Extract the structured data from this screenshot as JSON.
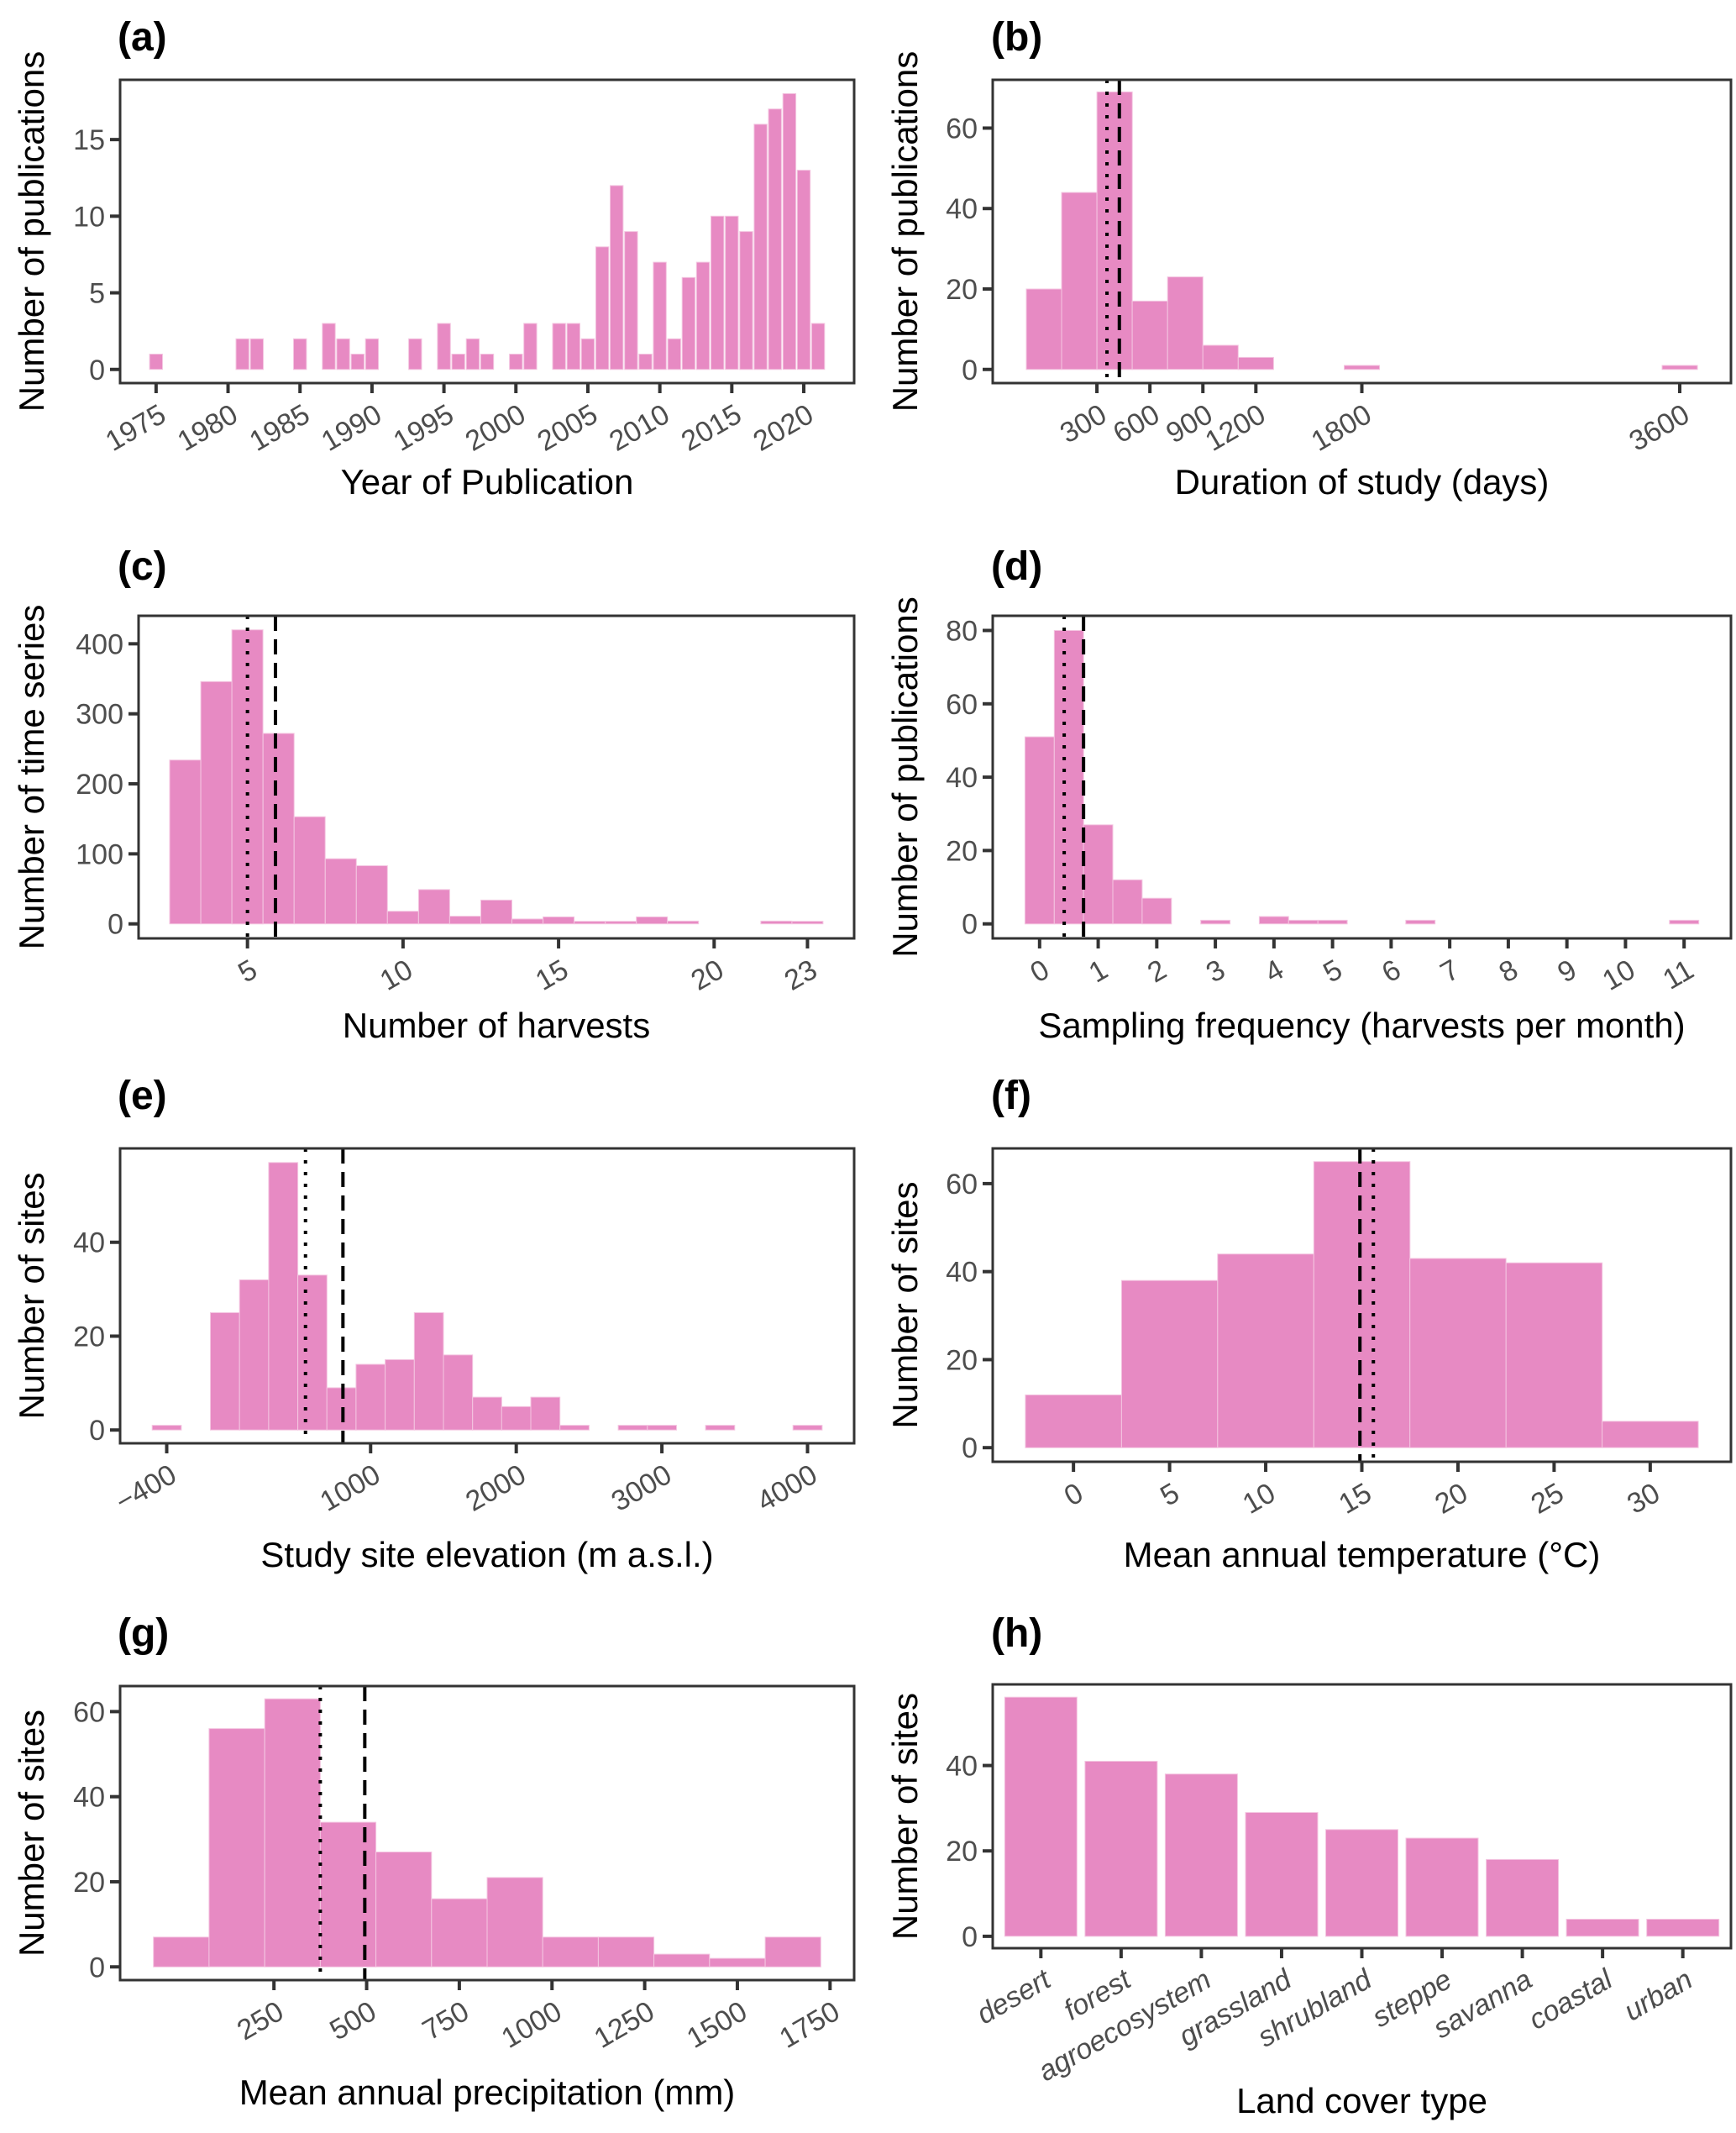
{
  "figure": {
    "bar_color": "#E78AC3",
    "bar_edge_color": "#F4C6E1",
    "line_color": "#000000"
  },
  "chart_data": [
    {
      "id": "a",
      "tag": "(a)",
      "type": "bar",
      "title": "",
      "xlabel": "Year of Publication",
      "ylabel": "Number of publications",
      "xlim": [
        1972.5,
        2023.5
      ],
      "ylim": [
        0,
        18.9
      ],
      "xticks": [
        1975,
        1980,
        1985,
        1990,
        1995,
        2000,
        2005,
        2010,
        2015,
        2020
      ],
      "xtick_labels": [
        "1975",
        "1980",
        "1985",
        "1990",
        "1995",
        "2000",
        "2005",
        "2010",
        "2015",
        "2020"
      ],
      "xtick_rotation": 30,
      "yticks": [
        0,
        5,
        10,
        15
      ],
      "ytick_labels": [
        "0",
        "5",
        "10",
        "15"
      ],
      "bin_width": 1,
      "x": [
        1975,
        1981,
        1982,
        1985,
        1987,
        1988,
        1989,
        1990,
        1993,
        1995,
        1996,
        1997,
        1998,
        2000,
        2001,
        2003,
        2004,
        2005,
        2006,
        2007,
        2008,
        2009,
        2010,
        2011,
        2012,
        2013,
        2014,
        2015,
        2016,
        2017,
        2018,
        2019,
        2020,
        2021
      ],
      "values": [
        1,
        2,
        2,
        2,
        3,
        2,
        1,
        2,
        2,
        3,
        1,
        2,
        1,
        1,
        3,
        3,
        3,
        2,
        8,
        12,
        9,
        1,
        7,
        2,
        6,
        7,
        10,
        10,
        9,
        16,
        17,
        18,
        13,
        3
      ],
      "gap": true,
      "grid": false,
      "vlines": []
    },
    {
      "id": "b",
      "tag": "(b)",
      "type": "bar",
      "title": "",
      "xlabel": "Duration of study (days)",
      "ylabel": "Number of publications",
      "xlim": [
        -290,
        3890
      ],
      "ylim": [
        0,
        72
      ],
      "xticks": [
        300,
        600,
        900,
        1200,
        1800,
        3600
      ],
      "xtick_labels": [
        "300",
        "600",
        "900",
        "1200",
        "1800",
        "3600"
      ],
      "xtick_rotation": 30,
      "yticks": [
        0,
        20,
        40,
        60
      ],
      "ytick_labels": [
        "0",
        "20",
        "40",
        "60"
      ],
      "bin_width": 200,
      "x": [
        0,
        200,
        400,
        600,
        800,
        1000,
        1200,
        1800,
        3600
      ],
      "values": [
        20,
        44,
        69,
        17,
        23,
        6,
        3,
        1,
        1
      ],
      "gap": false,
      "grid": false,
      "vlines": [
        {
          "value": 357,
          "style": "dotted",
          "label": "median"
        },
        {
          "value": 427,
          "style": "dashed",
          "label": "mean"
        }
      ]
    },
    {
      "id": "c",
      "tag": "(c)",
      "type": "bar",
      "title": "",
      "xlabel": "Number of harvests",
      "ylabel": "Number of time series",
      "xlim": [
        1.5,
        24.5
      ],
      "ylim": [
        0,
        440
      ],
      "xticks": [
        5,
        10,
        15,
        20,
        23
      ],
      "xtick_labels": [
        "5",
        "10",
        "15",
        "20",
        "23"
      ],
      "xtick_rotation": 30,
      "yticks": [
        0,
        100,
        200,
        300,
        400
      ],
      "ytick_labels": [
        "0",
        "100",
        "200",
        "300",
        "400"
      ],
      "bin_width": 1,
      "x": [
        3,
        4,
        5,
        6,
        7,
        8,
        9,
        10,
        11,
        12,
        13,
        14,
        15,
        16,
        17,
        18,
        19,
        20,
        21,
        22,
        23
      ],
      "values": [
        234,
        346,
        420,
        272,
        153,
        93,
        83,
        18,
        49,
        11,
        34,
        7,
        10,
        1,
        3,
        10,
        4,
        0,
        0,
        4,
        2
      ],
      "gap": false,
      "grid": false,
      "vlines": [
        {
          "value": 5.0,
          "style": "dotted",
          "label": "median"
        },
        {
          "value": 5.9,
          "style": "dashed",
          "label": "mean"
        }
      ]
    },
    {
      "id": "d",
      "tag": "(d)",
      "type": "bar",
      "title": "",
      "xlabel": "Sampling frequency (harvests per month)",
      "ylabel": "Number of publications",
      "xlim": [
        -0.8,
        11.8
      ],
      "ylim": [
        0,
        84
      ],
      "xticks": [
        0,
        1,
        2,
        3,
        4,
        5,
        6,
        7,
        8,
        9,
        10,
        11
      ],
      "xtick_labels": [
        "0",
        "1",
        "2",
        "3",
        "4",
        "5",
        "6",
        "7",
        "8",
        "9",
        "10",
        "11"
      ],
      "xtick_rotation": 30,
      "yticks": [
        0,
        20,
        40,
        60,
        80
      ],
      "ytick_labels": [
        "0",
        "20",
        "40",
        "60",
        "80"
      ],
      "bin_width": 0.5,
      "x": [
        0,
        0.5,
        1,
        1.5,
        2,
        3,
        4,
        4.5,
        5,
        6.5,
        11
      ],
      "values": [
        51,
        80,
        27,
        12,
        7,
        1,
        2,
        1,
        1,
        1,
        1
      ],
      "gap": false,
      "grid": false,
      "vlines": [
        {
          "value": 0.42,
          "style": "dotted",
          "label": "median"
        },
        {
          "value": 0.75,
          "style": "dashed",
          "label": "mean"
        }
      ]
    },
    {
      "id": "e",
      "tag": "(e)",
      "type": "bar",
      "title": "",
      "xlabel": "Study site elevation (m a.s.l.)",
      "ylabel": "Number of sites",
      "xlim": [
        -720,
        4320
      ],
      "ylim": [
        0,
        60
      ],
      "xticks": [
        -400,
        1000,
        2000,
        3000,
        4000
      ],
      "xtick_labels": [
        "−400",
        "1000",
        "2000",
        "3000",
        "4000"
      ],
      "xtick_rotation": 30,
      "yticks": [
        0,
        20,
        40
      ],
      "ytick_labels": [
        "0",
        "20",
        "40"
      ],
      "bin_width": 200,
      "x": [
        -400,
        0,
        200,
        400,
        600,
        800,
        1000,
        1200,
        1400,
        1600,
        1800,
        2000,
        2200,
        2400,
        2800,
        3000,
        3400,
        4000
      ],
      "values": [
        1,
        25,
        32,
        57,
        33,
        9,
        14,
        15,
        25,
        16,
        7,
        5,
        7,
        1,
        1,
        1,
        1,
        1
      ],
      "gap": false,
      "grid": false,
      "vlines": [
        {
          "value": 553,
          "style": "dotted",
          "label": "median"
        },
        {
          "value": 810,
          "style": "dashed",
          "label": "mean"
        }
      ]
    },
    {
      "id": "f",
      "tag": "(f)",
      "type": "bar",
      "title": "",
      "xlabel": "Mean annual temperature (°C)",
      "ylabel": "Number of sites",
      "xlim": [
        -4.2,
        34.2
      ],
      "ylim": [
        0,
        68
      ],
      "xticks": [
        0,
        5,
        10,
        15,
        20,
        25,
        30
      ],
      "xtick_labels": [
        "0",
        "5",
        "10",
        "15",
        "20",
        "25",
        "30"
      ],
      "xtick_rotation": 30,
      "yticks": [
        0,
        20,
        40,
        60
      ],
      "ytick_labels": [
        "0",
        "20",
        "40",
        "60"
      ],
      "bin_width": 5,
      "x": [
        0,
        5,
        10,
        15,
        20,
        25,
        30
      ],
      "values": [
        12,
        38,
        44,
        65,
        43,
        42,
        6
      ],
      "gap": false,
      "grid": false,
      "vlines": [
        {
          "value": 14.9,
          "style": "dashed",
          "label": "mean"
        },
        {
          "value": 15.6,
          "style": "dotted",
          "label": "median"
        }
      ]
    },
    {
      "id": "g",
      "tag": "(g)",
      "type": "bar",
      "title": "",
      "xlabel": "Mean annual precipitation (mm)",
      "ylabel": "Number of sites",
      "xlim": [
        -165,
        1815
      ],
      "ylim": [
        0,
        66
      ],
      "xticks": [
        250,
        500,
        750,
        1000,
        1250,
        1500,
        1750
      ],
      "xtick_labels": [
        "250",
        "500",
        "750",
        "1000",
        "1250",
        "1500",
        "1750"
      ],
      "xtick_rotation": 30,
      "yticks": [
        0,
        20,
        40,
        60
      ],
      "ytick_labels": [
        "0",
        "20",
        "40",
        "60"
      ],
      "bin_width": 150,
      "x": [
        0,
        150,
        300,
        450,
        600,
        750,
        900,
        1050,
        1200,
        1350,
        1500,
        1650
      ],
      "values": [
        7,
        56,
        63,
        34,
        27,
        16,
        21,
        7,
        7,
        3,
        2,
        7
      ],
      "gap": false,
      "grid": false,
      "vlines": [
        {
          "value": 375,
          "style": "dotted",
          "label": "median"
        },
        {
          "value": 495,
          "style": "dashed",
          "label": "mean"
        }
      ]
    },
    {
      "id": "h",
      "tag": "(h)",
      "type": "bar",
      "title": "",
      "xlabel": "Land cover type",
      "ylabel": "Number of sites",
      "categories": [
        "desert",
        "forest",
        "agroecosystem",
        "grassland",
        "shrubland",
        "steppe",
        "savanna",
        "coastal",
        "urban"
      ],
      "values": [
        56,
        41,
        38,
        29,
        25,
        23,
        18,
        4,
        4
      ],
      "xtick_rotation": 30,
      "xtick_italic": true,
      "ylim": [
        0,
        59
      ],
      "yticks": [
        0,
        20,
        40
      ],
      "ytick_labels": [
        "0",
        "20",
        "40"
      ],
      "gap": true,
      "grid": false,
      "vlines": []
    }
  ]
}
